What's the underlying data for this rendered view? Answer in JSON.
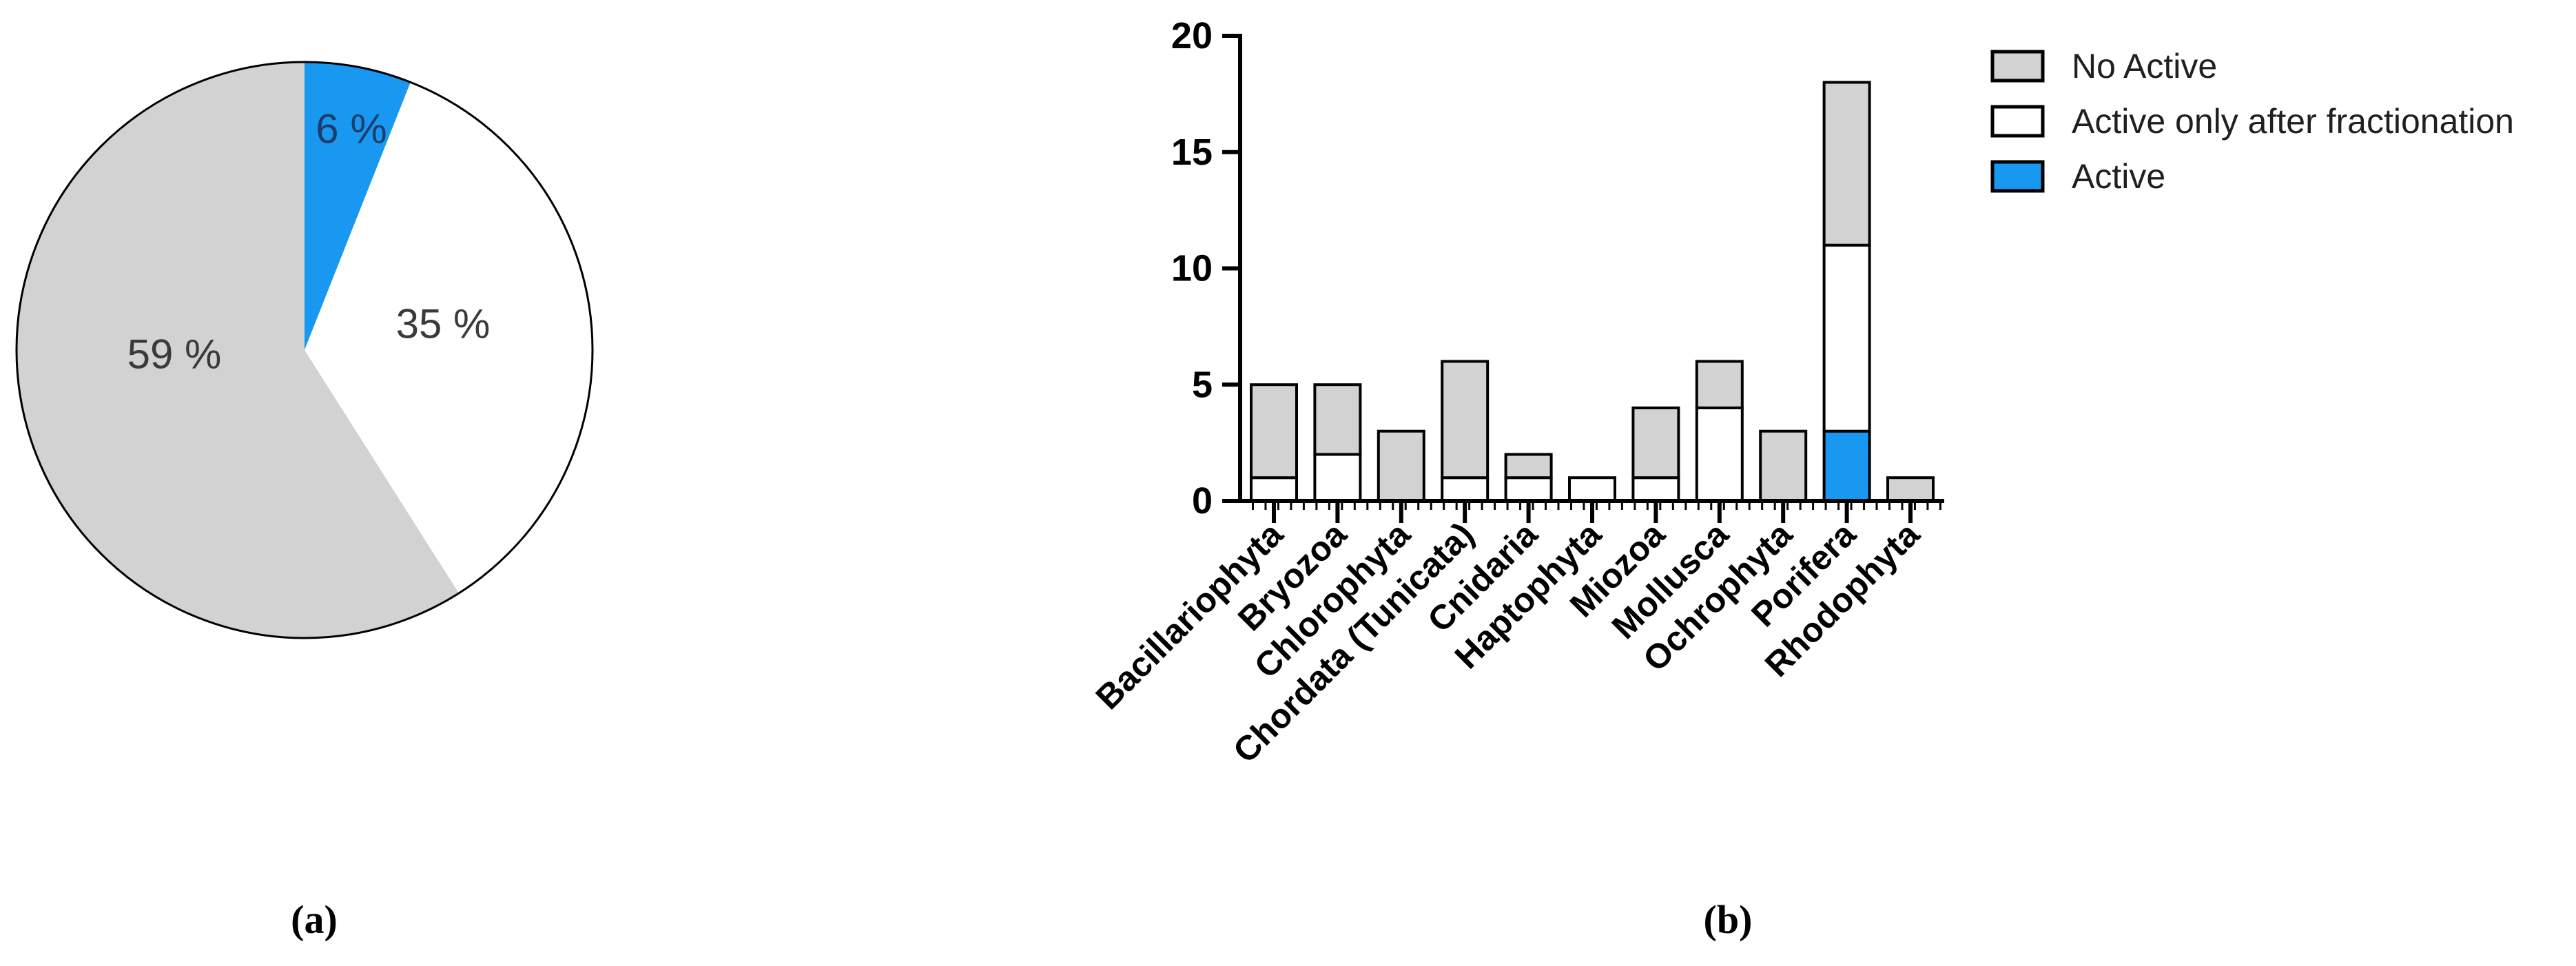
{
  "figure": {
    "panel_a_label": "(a)",
    "panel_b_label": "(b)"
  },
  "colors": {
    "active": "#1898f0",
    "fractionation": "#ffffff",
    "no_active": "#d2d2d2",
    "outline": "#000000"
  },
  "legend": {
    "items": [
      {
        "label": "No Active",
        "color_key": "no_active"
      },
      {
        "label": "Active only after fractionation",
        "color_key": "fractionation"
      },
      {
        "label": "Active",
        "color_key": "active"
      }
    ],
    "position": "top-right"
  },
  "chart_data": [
    {
      "type": "pie",
      "title": "",
      "start": "12 o'clock, clockwise",
      "slices": [
        {
          "label": "Active",
          "value_percent": 6,
          "display": "6 %",
          "color_key": "active"
        },
        {
          "label": "Active only after fractionation",
          "value_percent": 35,
          "display": "35 %",
          "color_key": "fractionation"
        },
        {
          "label": "No Active",
          "value_percent": 59,
          "display": "59 %",
          "color_key": "no_active"
        }
      ]
    },
    {
      "type": "bar",
      "stacked": true,
      "stack_order": "bottom-to-top",
      "categories": [
        "Bacillariophyta",
        "Bryozoa",
        "Chlorophyta",
        "Chordata (Tunicata)",
        "Cnidaria",
        "Haptophyta",
        "Miozoa",
        "Mollusca",
        "Ochrophyta",
        "Porifera",
        "Rhodophyta"
      ],
      "series": [
        {
          "name": "Active",
          "color_key": "active",
          "values": [
            0,
            0,
            0,
            0,
            0,
            0,
            0,
            0,
            0,
            3,
            0
          ]
        },
        {
          "name": "Active only after fractionation",
          "color_key": "fractionation",
          "values": [
            1,
            2,
            0,
            1,
            1,
            1,
            1,
            4,
            0,
            8,
            0
          ]
        },
        {
          "name": "No Active",
          "color_key": "no_active",
          "values": [
            4,
            3,
            3,
            5,
            1,
            0,
            3,
            2,
            3,
            7,
            1
          ]
        }
      ],
      "totals": [
        5,
        5,
        3,
        6,
        2,
        1,
        4,
        6,
        3,
        18,
        1
      ],
      "xlabel": "",
      "ylabel": "",
      "ylim": [
        0,
        20
      ],
      "yticks": [
        0,
        5,
        10,
        15,
        20
      ],
      "grid": false,
      "legend_position": "right-top"
    }
  ]
}
